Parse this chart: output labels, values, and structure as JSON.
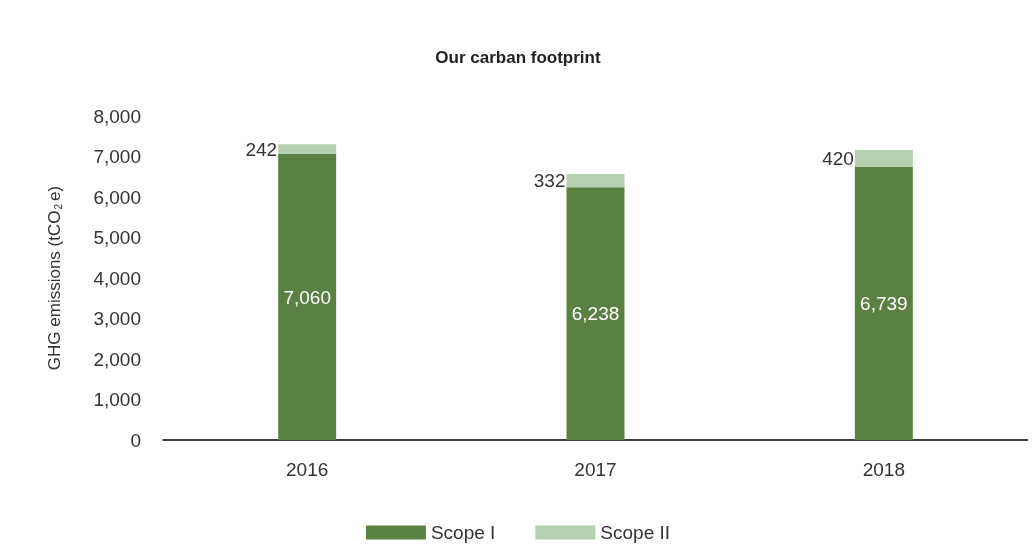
{
  "chart_data": {
    "type": "bar",
    "title": "Our carban footprint",
    "ylabel": "GHG emissions (tCO$_{2}$e)",
    "categories": [
      "2016",
      "2017",
      "2018"
    ],
    "stacked": true,
    "series": [
      {
        "name": "Scope I",
        "color": "#5b8142",
        "values": [
          7060,
          6238,
          6739
        ],
        "value_labels": [
          "7,060",
          "6,238",
          "6,739"
        ]
      },
      {
        "name": "Scope II",
        "color": "#b5d1b1",
        "values": [
          242,
          332,
          420
        ]
      }
    ],
    "ylim": [
      0,
      8000
    ],
    "yticks": [
      0,
      {
        "value": 1000,
        "label": "1,000"
      },
      {
        "value": 2000,
        "label": "2,000"
      },
      {
        "value": 3000,
        "label": "3,000"
      },
      {
        "value": 4000,
        "label": "4,000"
      },
      {
        "value": 5000,
        "label": "5,000"
      },
      {
        "value": 6000,
        "label": "6,000"
      },
      {
        "value": 7000,
        "label": "7,000"
      },
      {
        "value": 8000,
        "label": "8,000"
      }
    ],
    "grid": false,
    "legend": "bottom",
    "data_labels": true
  }
}
